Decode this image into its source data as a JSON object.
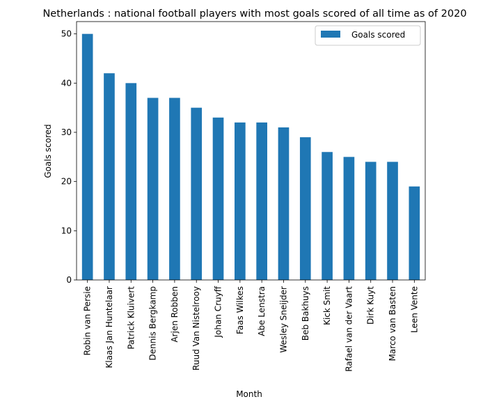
{
  "chart_data": {
    "type": "bar",
    "title": "Netherlands : national football players with most goals scored of all time as of 2020",
    "xlabel": "Month",
    "ylabel": "Goals scored",
    "ylim": [
      0,
      52.5
    ],
    "yticks": [
      0,
      10,
      20,
      30,
      40,
      50
    ],
    "categories": [
      "Robin van Persie",
      "Klaas Jan Huntelaar",
      "Patrick Kluivert",
      "Dennis Bergkamp",
      "Arjen Robben",
      "Ruud Van Nistelrooy",
      "Johan Cruyff",
      "Faas Wilkes",
      "Abe Lenstra",
      "Wesley Sneijder",
      "Beb Bakhuys",
      "Kick Smit",
      "Rafael van der Vaart",
      "Dirk Kuyt",
      "Marco van Basten",
      "Leen Vente"
    ],
    "series": [
      {
        "name": "Goals scored",
        "color": "#1f77b4",
        "values": [
          50,
          42,
          40,
          37,
          37,
          35,
          33,
          32,
          32,
          31,
          29,
          26,
          25,
          24,
          24,
          19
        ]
      }
    ],
    "legend": "top-right",
    "grid": false
  }
}
